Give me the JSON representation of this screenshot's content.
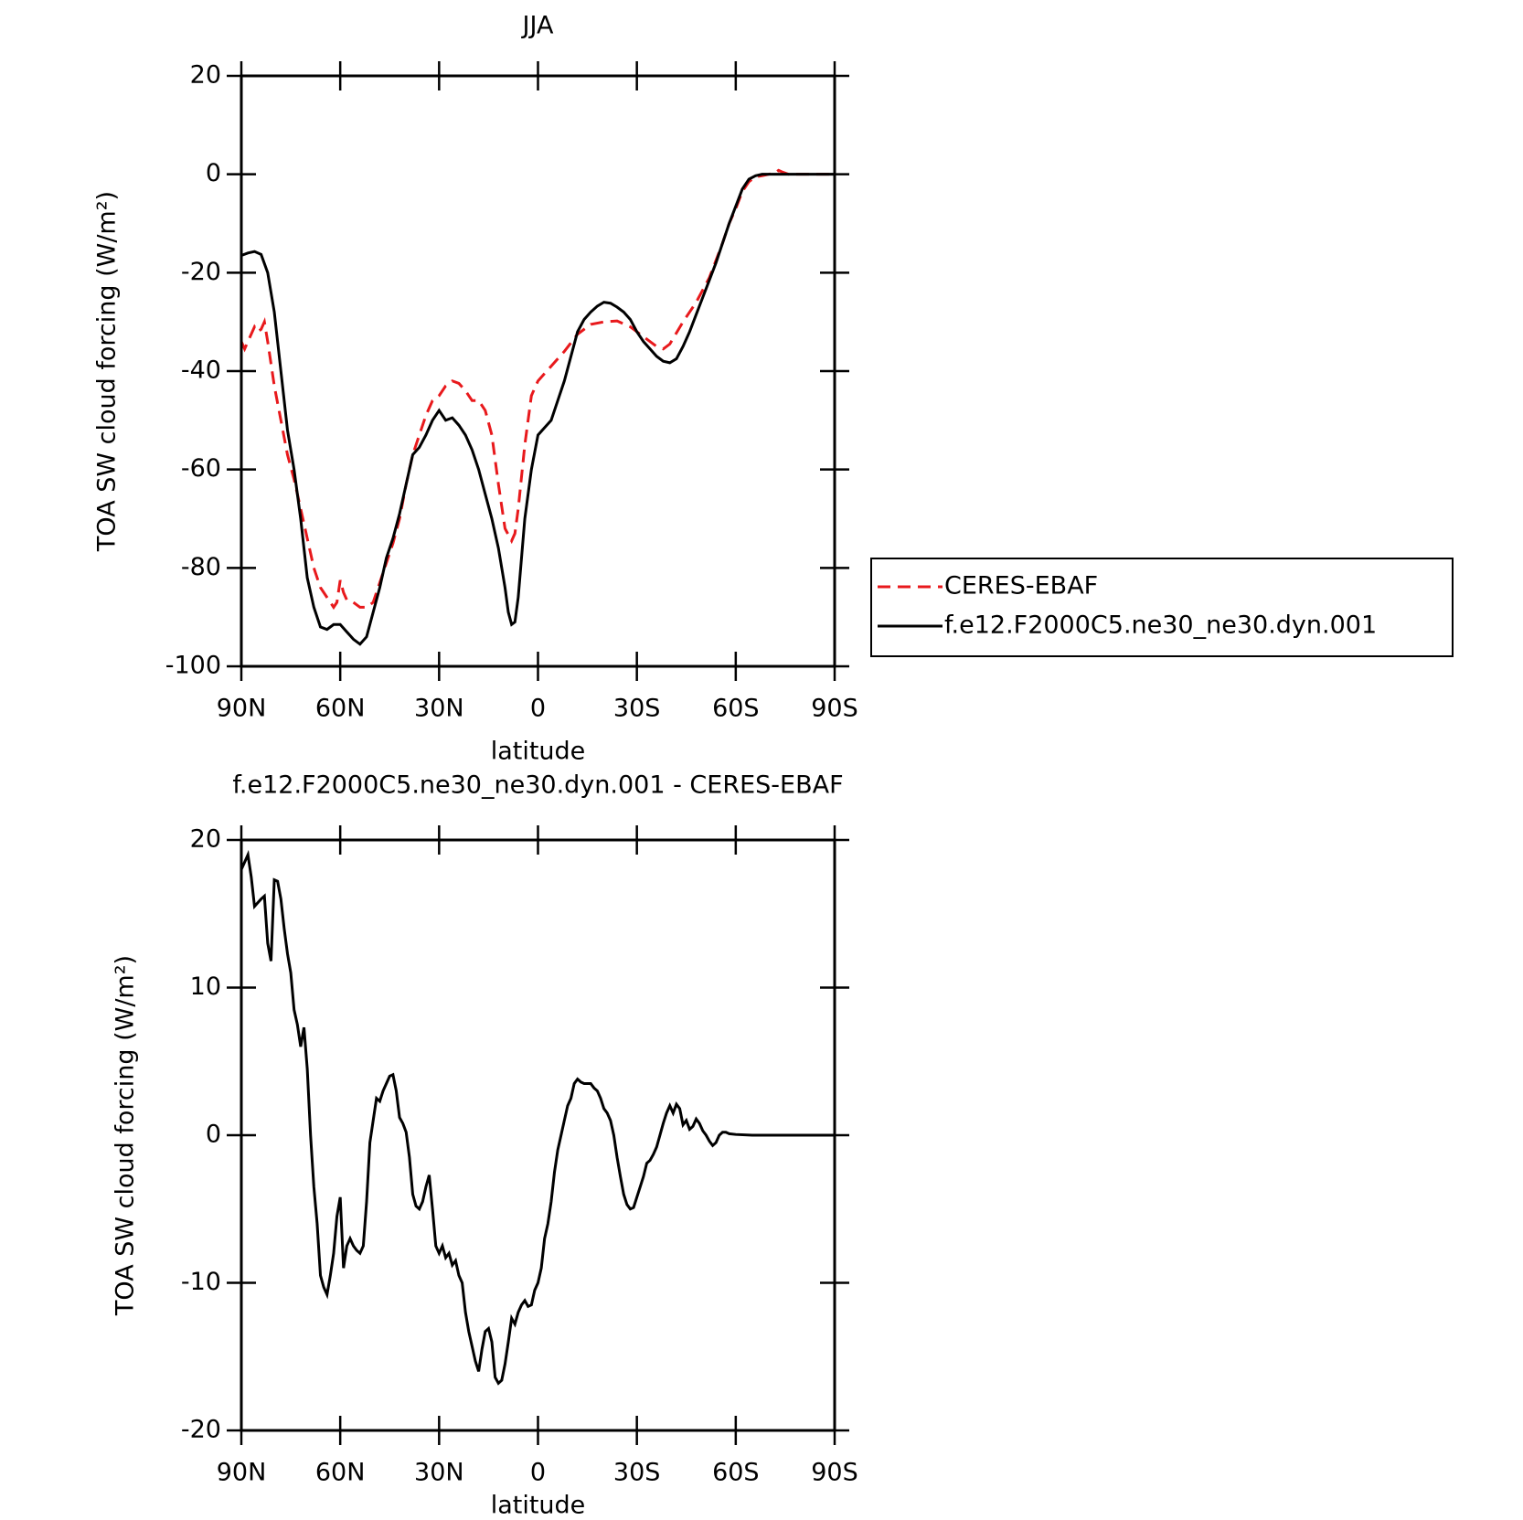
{
  "chart_data": [
    {
      "type": "line",
      "title": "JJA",
      "xlabel": "latitude",
      "ylabel": "TOA SW cloud forcing (W/m²)",
      "xlim": [
        90,
        -90
      ],
      "ylim": [
        -100,
        20
      ],
      "xticks": [
        {
          "value": 90,
          "label": "90N"
        },
        {
          "value": 60,
          "label": "60N"
        },
        {
          "value": 30,
          "label": "30N"
        },
        0,
        {
          "value": -30,
          "label": "30S"
        },
        {
          "value": -60,
          "label": "60S"
        },
        {
          "value": -90,
          "label": "90S"
        }
      ],
      "yticks": [
        -100,
        -80,
        -60,
        -40,
        -20,
        0,
        20
      ],
      "legend": "outside-right",
      "series": [
        {
          "name": "CERES-EBAF",
          "color": "#e8191c",
          "line_style": "dashed",
          "x": [
            90,
            89,
            88,
            86,
            85,
            84,
            83,
            82,
            80,
            78,
            76,
            74,
            72,
            70,
            68,
            66,
            64,
            62,
            61,
            60,
            59,
            58,
            56,
            54,
            52,
            50,
            48,
            46,
            44,
            42,
            40,
            38,
            36,
            34,
            32,
            30,
            28,
            26,
            24,
            22,
            20,
            18,
            16,
            14,
            12,
            10,
            8,
            7,
            6,
            4,
            2,
            0,
            -4,
            -8,
            -12,
            -16,
            -20,
            -24,
            -28,
            -32,
            -36,
            -38,
            -40,
            -44,
            -48,
            -52,
            -56,
            -58,
            -60,
            -62,
            -64,
            -66,
            -68,
            -70,
            -72,
            -73,
            -74,
            -76,
            -80,
            -85,
            -90
          ],
          "values": [
            -34,
            -35.5,
            -34,
            -31,
            -32,
            -31.5,
            -30,
            -34,
            -43,
            -50,
            -57,
            -62,
            -68,
            -74,
            -80,
            -84,
            -86,
            -88,
            -87,
            -82.5,
            -85,
            -86.5,
            -87,
            -88,
            -88,
            -87,
            -83,
            -79,
            -75,
            -70,
            -63,
            -57,
            -53,
            -49,
            -46,
            -45,
            -43,
            -42,
            -42.5,
            -44,
            -46,
            -46,
            -48,
            -53,
            -63,
            -72,
            -74.5,
            -73,
            -68,
            -55,
            -45,
            -42,
            -39,
            -36,
            -32.5,
            -30.5,
            -30,
            -29.8,
            -31,
            -33,
            -35,
            -35.5,
            -34.5,
            -30,
            -26,
            -21,
            -14,
            -10,
            -7,
            -3.5,
            -1.5,
            -0.5,
            -0.3,
            0,
            0.3,
            0.8,
            0.5,
            0,
            0,
            0,
            0
          ]
        },
        {
          "name": "f.e12.F2000C5.ne30_ne30.dyn.001",
          "color": "#000000",
          "line_style": "solid",
          "x": [
            90,
            88,
            86,
            84,
            82,
            80,
            78,
            76,
            74,
            72,
            70,
            68,
            66,
            64,
            62,
            60,
            58,
            56,
            54,
            52,
            50,
            48,
            46,
            44,
            42,
            40,
            38,
            36,
            34,
            32,
            30,
            29,
            28,
            26,
            24,
            22,
            20,
            18,
            16,
            14,
            12,
            10,
            9,
            8,
            7,
            6,
            4,
            2,
            0,
            -2,
            -4,
            -6,
            -8,
            -10,
            -12,
            -14,
            -16,
            -18,
            -20,
            -22,
            -24,
            -26,
            -28,
            -30,
            -32,
            -34,
            -36,
            -38,
            -40,
            -42,
            -44,
            -46,
            -48,
            -50,
            -52,
            -54,
            -56,
            -58,
            -60,
            -62,
            -64,
            -66,
            -68,
            -70,
            -75,
            -80,
            -85,
            -90
          ],
          "values": [
            -16.5,
            -16,
            -15.7,
            -16.3,
            -20,
            -28,
            -40,
            -52,
            -60,
            -70,
            -82,
            -88,
            -92,
            -92.5,
            -91.5,
            -91.5,
            -93,
            -94.5,
            -95.5,
            -94,
            -89,
            -84,
            -78,
            -74,
            -69,
            -63,
            -57,
            -55.5,
            -53,
            -50,
            -48,
            -49,
            -50,
            -49.5,
            -51,
            -53,
            -56,
            -60,
            -65,
            -70,
            -76,
            -84,
            -89,
            -91.5,
            -91,
            -86,
            -70,
            -60,
            -53,
            -51.5,
            -50,
            -46,
            -42,
            -37,
            -32,
            -29.5,
            -28,
            -26.8,
            -26,
            -26.2,
            -27,
            -28,
            -29.5,
            -32,
            -34,
            -35.5,
            -37,
            -38,
            -38.3,
            -37.5,
            -35,
            -32,
            -28.5,
            -25,
            -21.5,
            -18,
            -14,
            -10,
            -6.5,
            -3,
            -1,
            -0.3,
            0,
            0,
            0,
            0,
            0,
            0
          ]
        }
      ]
    },
    {
      "type": "line",
      "title": "f.e12.F2000C5.ne30_ne30.dyn.001 - CERES-EBAF",
      "xlabel": "latitude",
      "ylabel": "TOA SW cloud forcing (W/m²)",
      "xlim": [
        90,
        -90
      ],
      "ylim": [
        -20,
        20
      ],
      "xticks": [
        {
          "value": 90,
          "label": "90N"
        },
        {
          "value": 60,
          "label": "60N"
        },
        {
          "value": 30,
          "label": "30N"
        },
        0,
        {
          "value": -30,
          "label": "30S"
        },
        {
          "value": -60,
          "label": "60S"
        },
        {
          "value": -90,
          "label": "90S"
        }
      ],
      "yticks": [
        -20,
        -10,
        0,
        10,
        20
      ],
      "series": [
        {
          "color": "#000000",
          "line_style": "solid",
          "x": [
            90,
            89,
            88,
            87,
            86,
            84,
            83,
            82,
            81,
            80,
            79,
            78,
            77,
            76,
            75,
            74,
            73,
            72,
            71,
            70,
            69,
            68,
            67,
            66,
            65,
            64,
            63,
            62,
            61,
            60,
            59,
            58,
            57,
            56,
            55,
            54,
            53,
            52,
            51,
            50,
            49,
            48,
            47,
            46,
            45,
            44,
            43,
            42,
            41,
            40,
            39,
            38,
            37,
            36,
            35,
            34,
            33,
            32,
            31,
            30,
            29,
            28,
            27,
            26,
            25,
            24,
            23,
            22,
            21,
            20,
            19,
            18,
            17,
            16,
            15,
            14,
            13,
            12,
            11,
            10,
            9,
            8,
            7,
            6,
            5,
            4,
            3,
            2,
            1,
            0,
            -1,
            -2,
            -3,
            -4,
            -5,
            -6,
            -7,
            -8,
            -9,
            -10,
            -11,
            -12,
            -13,
            -14,
            -15,
            -16,
            -17,
            -18,
            -19,
            -20,
            -21,
            -22,
            -23,
            -24,
            -25,
            -26,
            -27,
            -28,
            -29,
            -30,
            -31,
            -32,
            -33,
            -34,
            -35,
            -36,
            -37,
            -38,
            -39,
            -40,
            -41,
            -42,
            -43,
            -44,
            -45,
            -46,
            -47,
            -48,
            -49,
            -50,
            -51,
            -52,
            -53,
            -54,
            -55,
            -56,
            -57,
            -58,
            -60,
            -65,
            -70,
            -90
          ],
          "values": [
            18,
            18.5,
            19,
            17.5,
            15.5,
            16,
            16.2,
            13,
            11.8,
            17.3,
            17.2,
            16,
            14,
            12.3,
            11,
            8.5,
            7.5,
            6,
            7.3,
            4.5,
            0,
            -3.5,
            -6,
            -9.5,
            -10.3,
            -10.8,
            -9.5,
            -8,
            -5.5,
            -4.2,
            -9,
            -7.5,
            -7,
            -7.5,
            -7.8,
            -8,
            -7.5,
            -4.5,
            -0.5,
            1,
            2.5,
            2.3,
            3,
            3.5,
            4,
            4.1,
            3,
            1.2,
            0.8,
            0.2,
            -1.5,
            -4,
            -4.8,
            -5,
            -4.5,
            -3.5,
            -2.7,
            -5,
            -7.5,
            -8,
            -7.5,
            -8.3,
            -8,
            -8.8,
            -8.5,
            -9.5,
            -10,
            -12,
            -13.3,
            -14.3,
            -15.3,
            -16,
            -14.5,
            -13.3,
            -13.1,
            -14,
            -16.4,
            -16.8,
            -16.6,
            -15.5,
            -14,
            -12.4,
            -12.8,
            -12,
            -11.5,
            -11.2,
            -11.6,
            -11.5,
            -10.5,
            -10,
            -9,
            -7,
            -6,
            -4.5,
            -2.5,
            -1,
            0,
            1,
            2,
            2.5,
            3.5,
            3.8,
            3.6,
            3.5,
            3.5,
            3.5,
            3.2,
            3,
            2.5,
            1.8,
            1.5,
            1,
            0,
            -1.5,
            -2.8,
            -4,
            -4.7,
            -5,
            -4.9,
            -4.2,
            -3.5,
            -2.8,
            -1.9,
            -1.7,
            -1.3,
            -0.8,
            0,
            0.8,
            1.5,
            2,
            1.5,
            2.1,
            1.8,
            0.7,
            1,
            0.4,
            0.6,
            1.1,
            0.8,
            0.3,
            0,
            -0.4,
            -0.7,
            -0.5,
            0,
            0.2,
            0.2,
            0.1,
            0.05,
            0,
            0,
            0
          ]
        }
      ]
    }
  ]
}
